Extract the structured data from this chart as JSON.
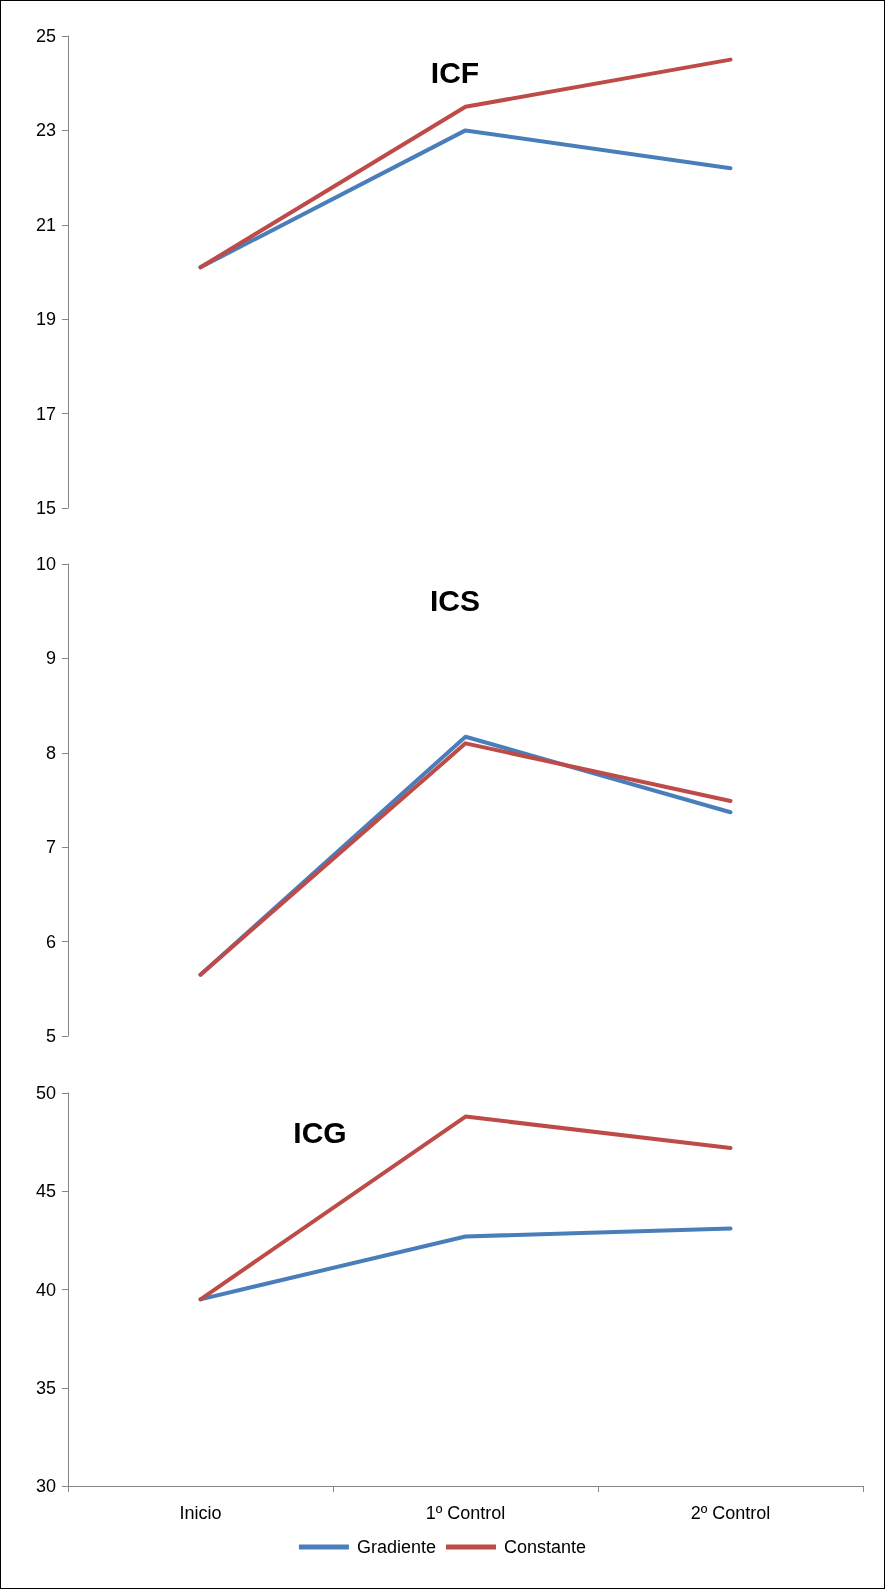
{
  "chart_data": [
    {
      "type": "line",
      "title": "ICF",
      "categories": [
        "Inicio",
        "1º Control",
        "2º Control"
      ],
      "tick_labels": "y",
      "ylim": [
        15,
        25
      ],
      "yticks": [
        15,
        17,
        19,
        21,
        23,
        25
      ],
      "grid": false,
      "marker": "none",
      "line_style": "solid",
      "series": [
        {
          "color": "#4a7ebb",
          "values": [
            20.1,
            23.0,
            22.2
          ]
        },
        {
          "color": "#be4b48",
          "values": [
            20.1,
            23.5,
            24.5
          ]
        }
      ]
    },
    {
      "type": "line",
      "title": "ICS",
      "categories": [
        "Inicio",
        "1º Control",
        "2º Control"
      ],
      "tick_labels": "y",
      "ylim": [
        5,
        10
      ],
      "yticks": [
        5,
        6,
        7,
        8,
        9,
        10
      ],
      "grid": false,
      "marker": "none",
      "line_style": "solid",
      "series": [
        {
          "color": "#4a7ebb",
          "values": [
            5.65,
            8.17,
            7.37
          ]
        },
        {
          "color": "#be4b48",
          "values": [
            5.65,
            8.1,
            7.49
          ]
        }
      ]
    },
    {
      "type": "line",
      "title": "ICG",
      "categories": [
        "Inicio",
        "1º Control",
        "2º Control"
      ],
      "ylim": [
        30,
        50
      ],
      "yticks": [
        30,
        35,
        40,
        45,
        50
      ],
      "grid": false,
      "marker": "none",
      "line_style": "solid",
      "legend": "bottom",
      "series": [
        {
          "name": "Gradiente",
          "color": "#4a7ebb",
          "values": [
            39.5,
            42.7,
            43.1
          ]
        },
        {
          "name": "Constante",
          "color": "#be4b48",
          "values": [
            39.5,
            48.8,
            47.2
          ]
        }
      ]
    }
  ]
}
